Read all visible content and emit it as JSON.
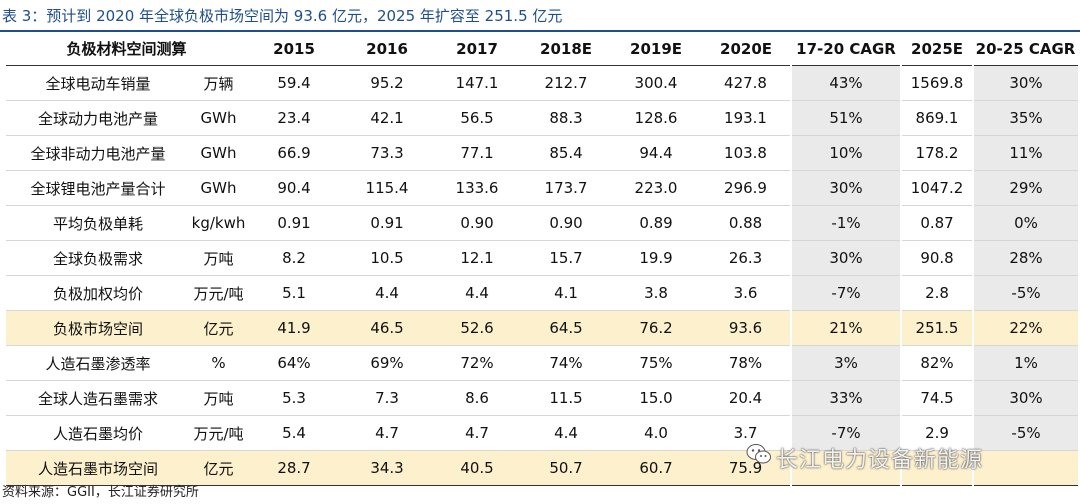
{
  "title": "表 3：预计到 2020 年全球负极市场空间为 93.6 亿元，2025 年扩容至 251.5 亿元",
  "header": [
    "负极材料空间测算",
    "2015",
    "2016",
    "2017",
    "2018E",
    "2019E",
    "2020E",
    "17-20 CAGR",
    "2025E",
    "20-25 CAGR"
  ],
  "rows": [
    {
      "name": "全球电动车销量",
      "unit": "万辆",
      "values": [
        "59.4",
        "95.2",
        "147.1",
        "212.7",
        "300.4",
        "427.8",
        "43%",
        "1569.8",
        "30%"
      ]
    },
    {
      "name": "全球动力电池产量",
      "unit": "GWh",
      "values": [
        "23.4",
        "42.1",
        "56.5",
        "88.3",
        "128.6",
        "193.1",
        "51%",
        "869.1",
        "35%"
      ]
    },
    {
      "name": "全球非动力电池产量",
      "unit": "GWh",
      "values": [
        "66.9",
        "73.3",
        "77.1",
        "85.4",
        "94.4",
        "103.8",
        "10%",
        "178.2",
        "11%"
      ]
    },
    {
      "name": "全球锂电池产量合计",
      "unit": "GWh",
      "values": [
        "90.4",
        "115.4",
        "133.6",
        "173.7",
        "223.0",
        "296.9",
        "30%",
        "1047.2",
        "29%"
      ]
    },
    {
      "name": "平均负极单耗",
      "unit": "kg/kwh",
      "values": [
        "0.91",
        "0.91",
        "0.90",
        "0.90",
        "0.89",
        "0.88",
        "-1%",
        "0.87",
        "0%"
      ]
    },
    {
      "name": "全球负极需求",
      "unit": "万吨",
      "values": [
        "8.2",
        "10.5",
        "12.1",
        "15.7",
        "19.9",
        "26.3",
        "30%",
        "90.8",
        "28%"
      ]
    },
    {
      "name": "负极加权均价",
      "unit": "万元/吨",
      "values": [
        "5.1",
        "4.4",
        "4.4",
        "4.1",
        "3.8",
        "3.6",
        "-7%",
        "2.8",
        "-5%"
      ]
    },
    {
      "name": "负极市场空间",
      "unit": "亿元",
      "values": [
        "41.9",
        "46.5",
        "52.6",
        "64.5",
        "76.2",
        "93.6",
        "21%",
        "251.5",
        "22%"
      ]
    },
    {
      "name": "人造石墨渗透率",
      "unit": "%",
      "values": [
        "64%",
        "69%",
        "72%",
        "74%",
        "75%",
        "78%",
        "3%",
        "82%",
        "1%"
      ]
    },
    {
      "name": "全球人造石墨需求",
      "unit": "万吨",
      "values": [
        "5.3",
        "7.3",
        "8.6",
        "11.5",
        "15.0",
        "20.4",
        "33%",
        "74.5",
        "30%"
      ]
    },
    {
      "name": "人造石墨均价",
      "unit": "万元/吨",
      "values": [
        "5.4",
        "4.7",
        "4.7",
        "4.4",
        "4.0",
        "3.7",
        "-7%",
        "2.9",
        "-5%"
      ]
    },
    {
      "name": "人造石墨市场空间",
      "unit": "亿元",
      "values": [
        "28.7",
        "34.3",
        "40.5",
        "50.7",
        "60.7",
        "75.9",
        "",
        "",
        ""
      ]
    }
  ],
  "source": "资料来源：GGII，长江证券研究所",
  "watermark": "长江电力设备新能源",
  "colors": {
    "title": "#1f4e8c",
    "highlight": "#fdf0cc",
    "cagr_shade": "#eaeaea"
  }
}
